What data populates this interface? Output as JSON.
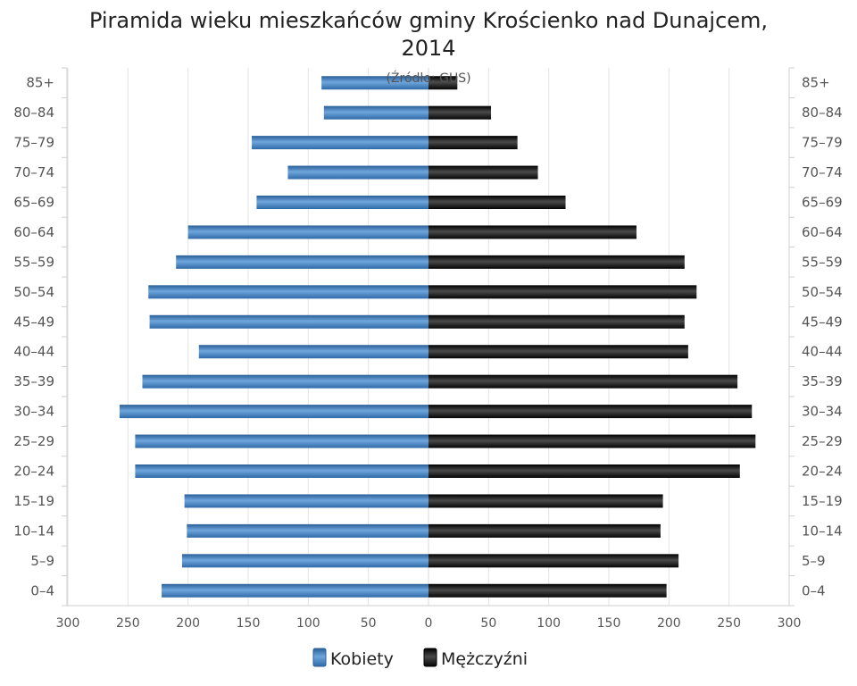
{
  "chart_data": {
    "type": "bar",
    "orientation": "horizontal-population-pyramid",
    "title_line1": "Piramida wieku mieszkańców gminy Krościenko nad Dunajcem,",
    "title_line2": "2014",
    "subtitle": "(Źródło: GUS)",
    "categories": [
      "85+",
      "80–84",
      "75–79",
      "70–74",
      "65–69",
      "60–64",
      "55–59",
      "50–54",
      "45–49",
      "40–44",
      "35–39",
      "30–34",
      "25–29",
      "20–24",
      "15–19",
      "10–14",
      "5–9",
      "0–4"
    ],
    "series": [
      {
        "name": "Kobiety",
        "side": "left",
        "color": "#3f7fc1",
        "values": [
          89,
          87,
          147,
          117,
          143,
          200,
          210,
          233,
          232,
          191,
          238,
          257,
          244,
          244,
          203,
          201,
          205,
          222
        ]
      },
      {
        "name": "Mężczyźni",
        "side": "right",
        "color": "#111111",
        "values": [
          24,
          52,
          74,
          91,
          114,
          173,
          213,
          223,
          213,
          216,
          257,
          269,
          272,
          259,
          195,
          193,
          208,
          198
        ]
      }
    ],
    "x_tick_labels": [
      "300",
      "250",
      "200",
      "150",
      "100",
      "50",
      "0",
      "50",
      "100",
      "150",
      "200",
      "250",
      "300"
    ],
    "xlim": [
      -300,
      300
    ],
    "grid": true,
    "legend_position": "bottom-center"
  }
}
